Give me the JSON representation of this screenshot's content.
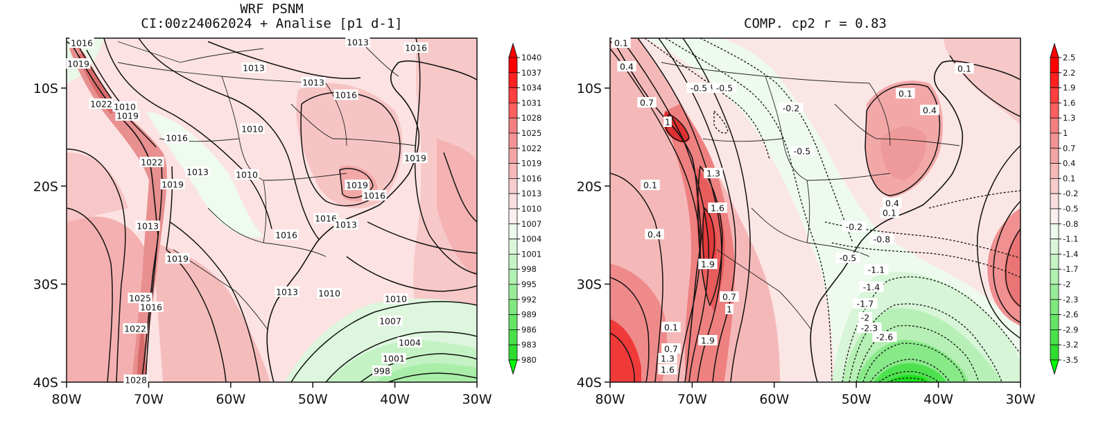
{
  "maps": [
    {
      "title_line1": "WRF PSNM",
      "title_line2": "CI:00z24062024 + Analise  [p1 d-1]",
      "x_ticks": [
        "80W",
        "70W",
        "60W",
        "50W",
        "40W",
        "30W"
      ],
      "y_ticks": [
        "10S",
        "20S",
        "30S",
        "40S"
      ],
      "colorbar_levels": [
        "1040",
        "1037",
        "1034",
        "1031",
        "1028",
        "1025",
        "1022",
        "1019",
        "1016",
        "1013",
        "1010",
        "1007",
        "1004",
        "1001",
        "998",
        "995",
        "992",
        "989",
        "986",
        "983",
        "980"
      ],
      "contour_labels": [
        "1016",
        "1019",
        "1013",
        "1016",
        "1013",
        "1013",
        "1016",
        "1022",
        "1010",
        "1019",
        "1010",
        "1016",
        "1022",
        "1013",
        "1010",
        "1019",
        "1019",
        "1019",
        "1016",
        "1016",
        "1013",
        "1013",
        "1016",
        "1019",
        "1025",
        "1013",
        "1010",
        "1010",
        "1007",
        "1022",
        "1004",
        "1001",
        "1028",
        "998",
        "1016"
      ]
    },
    {
      "title_line1": "COMP. cp2  r =  0.83",
      "x_ticks": [
        "80W",
        "70W",
        "60W",
        "50W",
        "40W",
        "30W"
      ],
      "y_ticks": [
        "10S",
        "20S",
        "30S",
        "40S"
      ],
      "colorbar_levels": [
        "2.5",
        "2.2",
        "1.9",
        "1.6",
        "1.3",
        "1",
        "0.7",
        "0.4",
        "0.1",
        "-0.2",
        "-0.5",
        "-0.8",
        "-1.1",
        "-1.4",
        "-1.7",
        "-2",
        "-2.3",
        "-2.6",
        "-2.9",
        "-3.2",
        "-3.5"
      ],
      "contour_labels": [
        "0.1",
        "0.4",
        "0.7",
        "1",
        "-0.5",
        "-0.5",
        "-0.2",
        "0.1",
        "0.1",
        "0.4",
        "-0.5",
        "1.3",
        "0.1",
        "1.6",
        "0.4",
        "0.1",
        "-0.2",
        "-0.8",
        "0.4",
        "1.9",
        "-0.5",
        "-1.1",
        "-1.4",
        "0.7",
        "1",
        "-1.7",
        "-2",
        "-2.3",
        "-2.6",
        "0.1",
        "0.7",
        "1.3",
        "1.6",
        "1.9"
      ]
    }
  ],
  "colors": {
    "colorbar": [
      "#ff0000",
      "#ff2020",
      "#ff3f3f",
      "#ff5f5f",
      "#f28080",
      "#f39393",
      "#f3a5a5",
      "#f6b8b8",
      "#f7cccc",
      "#f9dfdf",
      "#fbeeee",
      "#eef9ee",
      "#dcf6dc",
      "#c5f3c5",
      "#b0f0b0",
      "#98ec98",
      "#7fe87f",
      "#65e465",
      "#4ae04a",
      "#2fdc2f",
      "#00ff00"
    ]
  }
}
